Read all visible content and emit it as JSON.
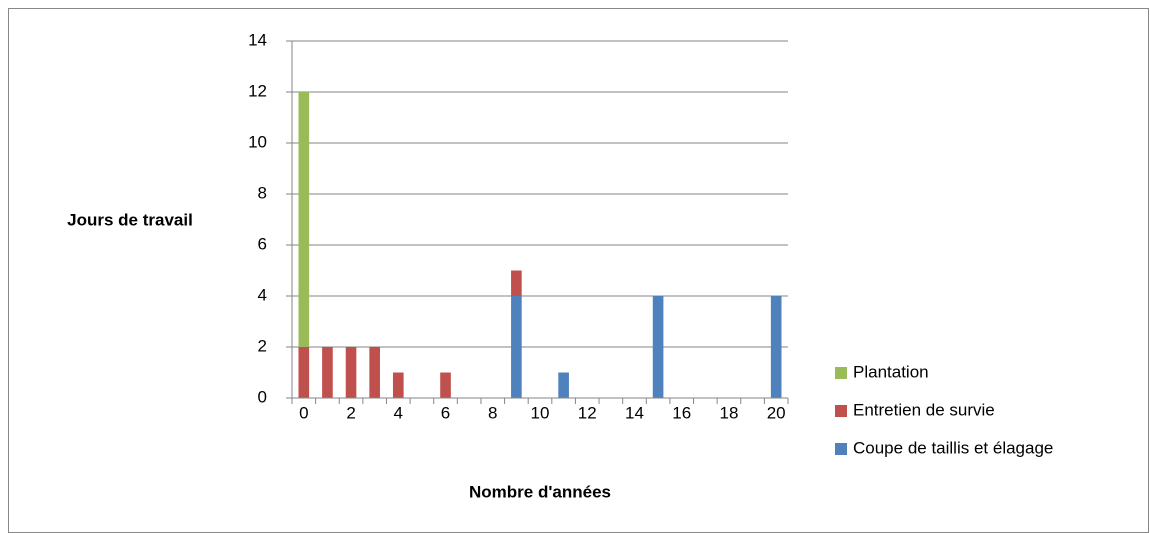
{
  "chart_data": {
    "type": "bar",
    "stacked": true,
    "x_label": "Nombre d'années",
    "y_label": "Jours de travail",
    "categories": [
      0,
      null,
      2,
      null,
      4,
      null,
      6,
      null,
      8,
      null,
      10,
      null,
      12,
      null,
      14,
      null,
      16,
      null,
      18,
      null,
      20
    ],
    "series": [
      {
        "name": "Coupe de taillis et élagage",
        "color": "#4f81bd",
        "values": [
          0,
          0,
          0,
          0,
          0,
          0,
          0,
          0,
          0,
          4,
          0,
          1,
          0,
          0,
          0,
          4,
          0,
          0,
          0,
          0,
          4
        ]
      },
      {
        "name": "Entretien de survie",
        "color": "#c0504d",
        "values": [
          2,
          2,
          2,
          2,
          1,
          0,
          1,
          0,
          0,
          1,
          0,
          0,
          0,
          0,
          0,
          0,
          0,
          0,
          0,
          0,
          0
        ]
      },
      {
        "name": "Plantation",
        "color": "#9bbb59",
        "values": [
          10,
          0,
          0,
          0,
          0,
          0,
          0,
          0,
          0,
          0,
          0,
          0,
          0,
          0,
          0,
          0,
          0,
          0,
          0,
          0,
          0
        ]
      }
    ],
    "ylim": [
      0,
      14
    ],
    "yticks": [
      0,
      2,
      4,
      6,
      8,
      10,
      12,
      14
    ],
    "grid": true,
    "legend": "right"
  }
}
